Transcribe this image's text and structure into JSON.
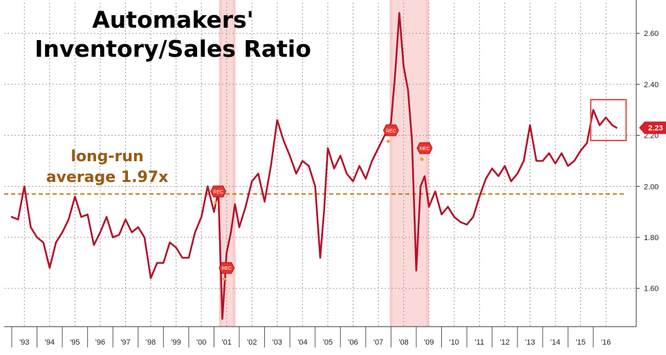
{
  "chart_data": {
    "type": "line",
    "title_lines": [
      "Automakers'",
      "Inventory/Sales Ratio"
    ],
    "xlabel": "",
    "ylabel": "",
    "x_tick_labels": [
      "'93",
      "'94",
      "'95",
      "'96",
      "'97",
      "'98",
      "'99",
      "'00",
      "'01",
      "'02",
      "'03",
      "'04",
      "'05",
      "'06",
      "'07",
      "'08",
      "'09",
      "'10",
      "'11",
      "'12",
      "'13",
      "'14",
      "'15",
      "'16"
    ],
    "y_ticks": [
      1.6,
      1.8,
      2.0,
      2.2,
      2.4,
      2.6
    ],
    "y_tick_labels": [
      "1.60",
      "1.80",
      "2.00",
      "2.20",
      "2.40",
      "2.60"
    ],
    "xlim": [
      1992.7,
      2017.7
    ],
    "ylim": [
      1.45,
      2.72
    ],
    "grid": true,
    "series": [
      {
        "color": "#b5112b",
        "x": [
          1993.0,
          1993.25,
          1993.5,
          1993.75,
          1994.0,
          1994.25,
          1994.5,
          1994.75,
          1995.0,
          1995.25,
          1995.5,
          1995.75,
          1996.0,
          1996.25,
          1996.5,
          1996.75,
          1997.0,
          1997.25,
          1997.5,
          1997.75,
          1998.0,
          1998.25,
          1998.5,
          1998.75,
          1999.0,
          1999.25,
          1999.5,
          1999.75,
          2000.0,
          2000.25,
          2000.5,
          2000.75,
          2001.0,
          2001.17,
          2001.33,
          2001.5,
          2001.67,
          2001.83,
          2002.0,
          2002.25,
          2002.5,
          2002.75,
          2003.0,
          2003.25,
          2003.5,
          2003.75,
          2004.0,
          2004.25,
          2004.5,
          2004.75,
          2005.0,
          2005.2,
          2005.35,
          2005.5,
          2005.75,
          2006.0,
          2006.25,
          2006.5,
          2006.75,
          2007.0,
          2007.25,
          2007.5,
          2007.75,
          2008.0,
          2008.17,
          2008.33,
          2008.5,
          2008.67,
          2008.83,
          2009.0,
          2009.17,
          2009.33,
          2009.5,
          2009.75,
          2010.0,
          2010.25,
          2010.5,
          2010.75,
          2011.0,
          2011.25,
          2011.5,
          2011.75,
          2012.0,
          2012.25,
          2012.5,
          2012.75,
          2013.0,
          2013.25,
          2013.5,
          2013.75,
          2014.0,
          2014.25,
          2014.5,
          2014.75,
          2015.0,
          2015.25,
          2015.5,
          2015.75,
          2016.0,
          2016.25,
          2016.5,
          2016.75,
          2016.92
        ],
        "values": [
          1.88,
          1.87,
          2.0,
          1.84,
          1.8,
          1.78,
          1.68,
          1.78,
          1.82,
          1.87,
          1.96,
          1.88,
          1.89,
          1.77,
          1.82,
          1.88,
          1.8,
          1.81,
          1.87,
          1.82,
          1.84,
          1.8,
          1.64,
          1.7,
          1.7,
          1.78,
          1.76,
          1.72,
          1.72,
          1.82,
          1.88,
          2.0,
          1.9,
          1.98,
          1.48,
          1.74,
          1.82,
          1.93,
          1.84,
          1.92,
          2.02,
          2.05,
          1.94,
          2.08,
          2.26,
          2.18,
          2.12,
          2.05,
          2.1,
          2.08,
          2.0,
          1.72,
          1.9,
          2.15,
          2.07,
          2.12,
          2.05,
          2.02,
          2.08,
          2.03,
          2.1,
          2.15,
          2.2,
          2.25,
          2.45,
          2.68,
          2.47,
          2.38,
          2.18,
          1.67,
          2.0,
          2.04,
          1.92,
          1.98,
          1.89,
          1.92,
          1.88,
          1.86,
          1.85,
          1.88,
          1.96,
          2.03,
          2.07,
          2.04,
          2.08,
          2.02,
          2.05,
          2.1,
          2.24,
          2.1,
          2.1,
          2.13,
          2.09,
          2.13,
          2.08,
          2.1,
          2.14,
          2.17,
          2.3,
          2.24,
          2.27,
          2.24,
          2.23
        ]
      }
    ],
    "recession_bands": [
      {
        "start": 2001.2,
        "end": 2001.85
      },
      {
        "start": 2007.95,
        "end": 2009.5
      }
    ],
    "recession_marker_label": "REC",
    "recession_markers": [
      {
        "x": 2001.17,
        "y": 1.98
      },
      {
        "x": 2001.5,
        "y": 1.68
      },
      {
        "x": 2008.0,
        "y": 2.22
      },
      {
        "x": 2009.33,
        "y": 2.15
      }
    ],
    "average": {
      "value": 1.97,
      "label_lines": [
        "long-run",
        "average 1.97x"
      ],
      "color": "#c07a1a"
    },
    "last_value": {
      "value": 2.23,
      "label": "2.23",
      "color": "#d81f2a"
    },
    "highlight_box": {
      "x_start": 2015.9,
      "x_end": 2017.3,
      "y_low": 2.18,
      "y_high": 2.34,
      "color": "#e74c4c"
    }
  }
}
